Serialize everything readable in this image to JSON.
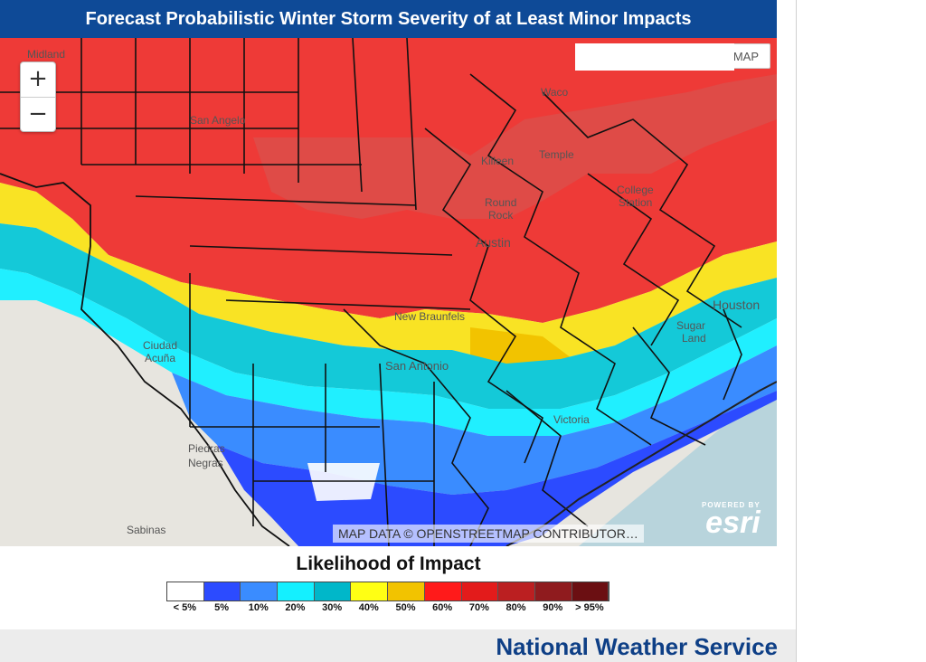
{
  "title": "Forecast Probabilistic Winter Storm Severity of at Least Minor Impacts",
  "map": {
    "zoom_in": "+",
    "zoom_out": "−",
    "basemap_button": "MAP",
    "attribution": "MAP DATA © OPENSTREETMAP CONTRIBUTOR…",
    "esri_powered_by": "POWERED BY",
    "esri_logo": "esri",
    "places": [
      "Midland",
      "San Angelo",
      "Waco",
      "Killeen",
      "Temple",
      "College Station",
      "Round Rock",
      "Austin",
      "New Braunfels",
      "San Antonio",
      "Houston",
      "Sugar Land",
      "Victoria",
      "Ciudad Acuña",
      "Piedras Negras",
      "Sabinas"
    ]
  },
  "legend": {
    "title": "Likelihood of Impact",
    "bins": [
      {
        "label": "< 5%",
        "color": "#ffffff"
      },
      {
        "label": "5%",
        "color": "#2c4bff"
      },
      {
        "label": "10%",
        "color": "#3a8cff"
      },
      {
        "label": "20%",
        "color": "#14f0ff"
      },
      {
        "label": "30%",
        "color": "#00b7c9"
      },
      {
        "label": "40%",
        "color": "#ffff14"
      },
      {
        "label": "50%",
        "color": "#f2c300"
      },
      {
        "label": "60%",
        "color": "#ff1a1a"
      },
      {
        "label": "70%",
        "color": "#e31b1b"
      },
      {
        "label": "80%",
        "color": "#bb1f21"
      },
      {
        "label": "90%",
        "color": "#8f1b1e"
      },
      {
        "label": "> 95%",
        "color": "#6b0f12"
      }
    ]
  },
  "footer": {
    "agency": "National Weather Service"
  }
}
